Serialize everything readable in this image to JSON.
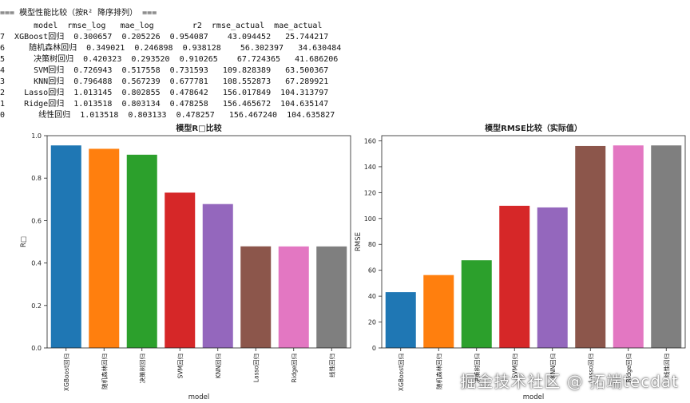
{
  "console": {
    "header": "=== 模型性能比较（按R² 降序排列） ===",
    "columns_line": "       model  rmse_log   mae_log        r2  rmse_actual  mae_actual",
    "rows": [
      "7  XGBoost回归  0.300657  0.205226  0.954087    43.094452   25.744217",
      "6     随机森林回归  0.349021  0.246898  0.938128    56.302397   34.630484",
      "5      决策树回归  0.420323  0.293520  0.910265    67.724365   41.686206",
      "4      SVM回归  0.726943  0.517558  0.731593   109.828389   63.500367",
      "3      KNN回归  0.796488  0.567239  0.677781   108.552873   67.289921",
      "2    Lasso回归  1.013145  0.802855  0.478642   156.017849  104.313797",
      "1    Ridge回归  1.013518  0.803134  0.478258   156.465672  104.635147",
      "0       线性回归  1.013518  0.803133  0.478257   156.467240  104.635827"
    ]
  },
  "chart_data": [
    {
      "type": "bar",
      "title": "模型R□比较",
      "xlabel": "model",
      "ylabel": "R□",
      "categories": [
        "XGBoost回归",
        "随机森林回归",
        "决策树回归",
        "SVM回归",
        "KNN回归",
        "Lasso回归",
        "Ridge回归",
        "线性回归"
      ],
      "values": [
        0.954087,
        0.938128,
        0.910265,
        0.731593,
        0.677781,
        0.478642,
        0.478258,
        0.478257
      ],
      "ylim": [
        0,
        1.0
      ],
      "yticks": [
        0.0,
        0.2,
        0.4,
        0.6,
        0.8,
        1.0
      ],
      "ytick_labels": [
        "0.0",
        "0.2",
        "0.4",
        "0.6",
        "0.8",
        "1.0"
      ],
      "grid": false
    },
    {
      "type": "bar",
      "title": "模型RMSE比较（实际值）",
      "xlabel": "model",
      "ylabel": "RMSE",
      "categories": [
        "XGBoost回归",
        "随机森林回归",
        "决策树回归",
        "SVM回归",
        "KNN回归",
        "Lasso回归",
        "Ridge回归",
        "线性回归"
      ],
      "values": [
        43.094452,
        56.302397,
        67.724365,
        109.828389,
        108.552873,
        156.017849,
        156.465672,
        156.46724
      ],
      "ylim": [
        0,
        164
      ],
      "yticks": [
        0,
        20,
        40,
        60,
        80,
        100,
        120,
        140,
        160
      ],
      "ytick_labels": [
        "0",
        "20",
        "40",
        "60",
        "80",
        "100",
        "120",
        "140",
        "160"
      ],
      "grid": false
    }
  ],
  "palette": [
    "#1f77b4",
    "#ff7f0e",
    "#2ca02c",
    "#d62728",
    "#9467bd",
    "#8c564b",
    "#e377c2",
    "#7f7f7f"
  ],
  "watermark": "掘金技术社区 @ 拓端tecdat"
}
